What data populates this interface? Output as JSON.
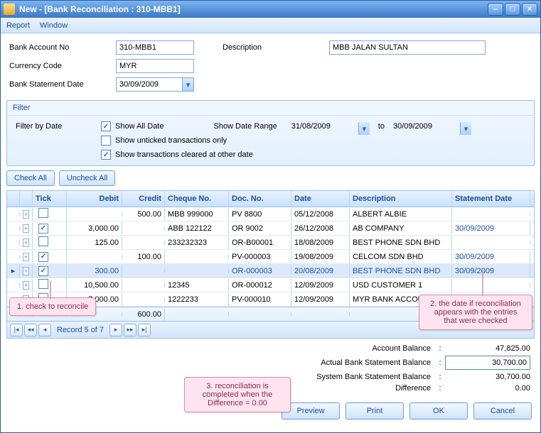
{
  "window": {
    "title": "New  - [Bank Reconciliation : 310-MBB1]"
  },
  "menubar": {
    "report": "Report",
    "window": "Window"
  },
  "form": {
    "bankAccountNo_label": "Bank Account No",
    "bankAccountNo_value": "310-MBB1",
    "description_label": "Description",
    "description_value": "MBB JALAN SULTAN",
    "currencyCode_label": "Currency Code",
    "currencyCode_value": "MYR",
    "bankStatementDate_label": "Bank Statement Date",
    "bankStatementDate_value": "30/09/2009"
  },
  "filter": {
    "title": "Filter",
    "filterByDate_label": "Filter by Date",
    "showAllDate_label": "Show All Date",
    "showAllDate_checked": true,
    "showDateRange_label": "Show Date Range",
    "range_from": "31/08/2009",
    "range_to": "30/09/2009",
    "to_label": "to",
    "showUnticked_label": "Show unticked transactions only",
    "showUnticked_checked": false,
    "showCleared_label": "Show transactions cleared at other date",
    "showCleared_checked": true
  },
  "buttons": {
    "checkAll": "Check All",
    "uncheckAll": "Uncheck All"
  },
  "grid": {
    "columns": {
      "tick": "Tick",
      "debit": "Debit",
      "credit": "Credit",
      "cheque": "Cheque No.",
      "doc": "Doc. No.",
      "date": "Date",
      "desc": "Description",
      "stmt": "Statement Date"
    },
    "rows": [
      {
        "tick": false,
        "debit": "",
        "credit": "500.00",
        "cheque": "MBB 999000",
        "doc": "PV 8800",
        "date": "05/12/2008",
        "desc": "ALBERT ALBIE",
        "stmt": ""
      },
      {
        "tick": true,
        "debit": "3,000.00",
        "credit": "",
        "cheque": "ABB 122122",
        "doc": "OR 9002",
        "date": "26/12/2008",
        "desc": "AB COMPANY",
        "stmt": "30/09/2009"
      },
      {
        "tick": false,
        "debit": "125.00",
        "credit": "",
        "cheque": "233232323",
        "doc": "OR-B00001",
        "date": "18/08/2009",
        "desc": "BEST PHONE SDN BHD",
        "stmt": ""
      },
      {
        "tick": true,
        "debit": "",
        "credit": "100.00",
        "cheque": "",
        "doc": "PV-000003",
        "date": "19/08/2009",
        "desc": "CELCOM SDN BHD",
        "stmt": "30/09/2009"
      },
      {
        "tick": true,
        "debit": "300.00",
        "credit": "",
        "cheque": "",
        "doc": "OR-000003",
        "date": "20/08/2009",
        "desc": "BEST PHONE SDN BHD",
        "stmt": "30/09/2009",
        "selected": true
      },
      {
        "tick": false,
        "debit": "10,500.00",
        "credit": "",
        "cheque": "12345",
        "doc": "OR-000012",
        "date": "12/09/2009",
        "desc": "USD CUSTOMER 1",
        "stmt": ""
      },
      {
        "tick": false,
        "debit": "7,000.00",
        "credit": "",
        "cheque": "1222233",
        "doc": "PV-000010",
        "date": "12/09/2009",
        "desc": "MYR BANK ACCOUNT",
        "stmt": ""
      }
    ],
    "totals": {
      "credit": "600.00"
    },
    "pager": {
      "record": "Record 5 of 7"
    }
  },
  "balances": {
    "accountBalance_label": "Account Balance",
    "accountBalance_value": "47,825.00",
    "actualBalance_label": "Actual Bank Statement Balance",
    "actualBalance_value": "30,700.00",
    "systemBalance_label": "System Bank Statement Balance",
    "systemBalance_value": "30,700.00",
    "difference_label": "Difference",
    "difference_value": "0.00"
  },
  "actions": {
    "preview": "Preview",
    "print": "Print",
    "ok": "OK",
    "cancel": "Cancel"
  },
  "callouts": {
    "c1": "1. check to reconcile",
    "c2": "2. the date if reconciliation appears with the entries that were checked",
    "c3": "3. reconciliation is completed when the Difference = 0.00"
  },
  "colors": {
    "title_grad_top": "#7bb4f0",
    "title_grad_bottom": "#3b78c4",
    "border": "#9cc1ee",
    "accent": "#1a4e9a",
    "callout_bg": "#ffe4ef",
    "callout_border": "#d88aaa"
  }
}
